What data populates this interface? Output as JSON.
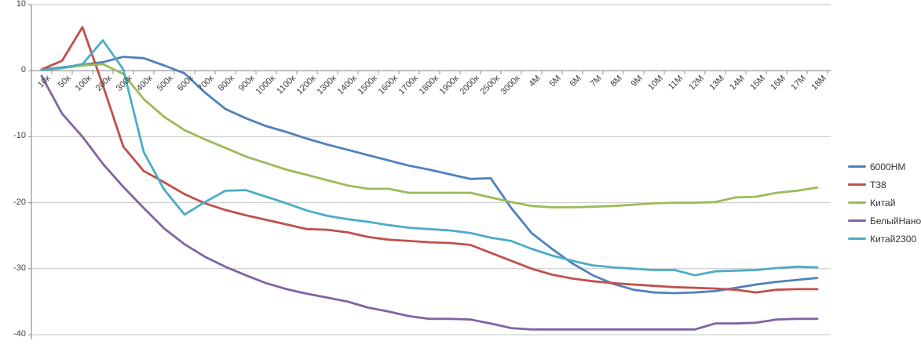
{
  "chart_data": {
    "type": "line",
    "title": "",
    "xlabel": "",
    "ylabel": "",
    "ylim": [
      -40,
      10
    ],
    "y_ticks": [
      10,
      0,
      -10,
      -20,
      -30,
      -40
    ],
    "grid": true,
    "legend_position": "right",
    "categories": [
      "10к",
      "50к",
      "100к",
      "200к",
      "300к",
      "400к",
      "500к",
      "600к",
      "700к",
      "800к",
      "900к",
      "1000к",
      "1100к",
      "1200к",
      "1300к",
      "1400к",
      "1500к",
      "1600к",
      "1700к",
      "1800к",
      "1900к",
      "2000к",
      "2500к",
      "3000к",
      "4M",
      "5M",
      "6M",
      "7M",
      "8M",
      "9M",
      "10M",
      "11M",
      "12M",
      "13M",
      "14M",
      "15M",
      "16M",
      "17M",
      "18M"
    ],
    "series": [
      {
        "name": "6000НМ",
        "color": "#4F81BD",
        "values": [
          0.2,
          0.5,
          0.9,
          1.3,
          2.1,
          1.9,
          0.8,
          -0.4,
          -3.3,
          -5.8,
          -7.2,
          -8.4,
          -9.3,
          -10.3,
          -11.2,
          -12.0,
          -12.8,
          -13.6,
          -14.4,
          -15.0,
          -15.7,
          -16.4,
          -16.3,
          -20.8,
          -24.6,
          -27.0,
          -29.2,
          -31.0,
          -32.3,
          -33.2,
          -33.6,
          -33.7,
          -33.6,
          -33.4,
          -32.9,
          -32.4,
          -32.0,
          -31.7,
          -31.4
        ]
      },
      {
        "name": "Т38",
        "color": "#C0504D",
        "values": [
          0.2,
          1.5,
          6.6,
          -2.2,
          -11.5,
          -15.2,
          -16.9,
          -18.7,
          -20.1,
          -21.1,
          -21.9,
          -22.6,
          -23.3,
          -24.0,
          -24.1,
          -24.5,
          -25.2,
          -25.6,
          -25.8,
          -26.0,
          -26.1,
          -26.4,
          -27.6,
          -28.8,
          -30.0,
          -30.9,
          -31.5,
          -31.9,
          -32.2,
          -32.4,
          -32.6,
          -32.8,
          -32.9,
          -33.0,
          -33.2,
          -33.6,
          -33.2,
          -33.1,
          -33.1
        ]
      },
      {
        "name": "Китай",
        "color": "#9BBB59",
        "values": [
          0.1,
          0.4,
          0.8,
          1.0,
          -0.5,
          -4.3,
          -7.0,
          -9.0,
          -10.4,
          -11.7,
          -13.0,
          -14.0,
          -15.0,
          -15.8,
          -16.6,
          -17.4,
          -17.9,
          -17.9,
          -18.5,
          -18.5,
          -18.5,
          -18.5,
          -19.2,
          -19.9,
          -20.5,
          -20.7,
          -20.7,
          -20.6,
          -20.5,
          -20.3,
          -20.1,
          -20.0,
          -20.0,
          -19.9,
          -19.2,
          -19.1,
          -18.5,
          -18.2,
          -17.7
        ]
      },
      {
        "name": "БелыйНано",
        "color": "#8064A2",
        "values": [
          -0.8,
          -6.5,
          -10.0,
          -14.1,
          -17.6,
          -20.8,
          -23.9,
          -26.3,
          -28.2,
          -29.7,
          -31.0,
          -32.2,
          -33.1,
          -33.8,
          -34.4,
          -35.0,
          -35.9,
          -36.5,
          -37.2,
          -37.6,
          -37.6,
          -37.7,
          -38.3,
          -39.0,
          -39.2,
          -39.2,
          -39.2,
          -39.2,
          -39.2,
          -39.2,
          -39.2,
          -39.2,
          -39.2,
          -38.3,
          -38.3,
          -38.2,
          -37.7,
          -37.6,
          -37.6
        ]
      },
      {
        "name": "Китай2300",
        "color": "#4BACC6",
        "values": [
          0.1,
          0.4,
          1.0,
          4.6,
          0.2,
          -12.3,
          -18.0,
          -21.8,
          -19.9,
          -18.2,
          -18.1,
          -19.1,
          -20.1,
          -21.2,
          -22.0,
          -22.5,
          -22.9,
          -23.4,
          -23.8,
          -24.0,
          -24.2,
          -24.6,
          -25.3,
          -25.8,
          -27.0,
          -28.0,
          -28.8,
          -29.5,
          -29.8,
          -30.0,
          -30.2,
          -30.2,
          -31.0,
          -30.4,
          -30.3,
          -30.2,
          -29.9,
          -29.7,
          -29.8
        ]
      }
    ]
  },
  "style_colors": {
    "gridline": "#C6C6C6",
    "axis": "#8C8C8C",
    "tick_label": "#3f3f3f",
    "legend_text": "#333333"
  }
}
